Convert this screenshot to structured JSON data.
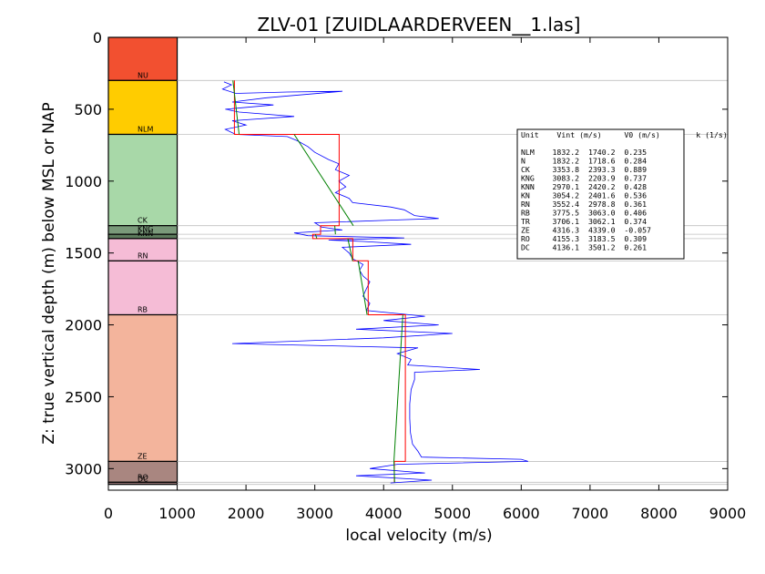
{
  "chart_data": {
    "type": "line",
    "title": "ZLV-01 [ZUIDLAARDERVEEN__1.las]",
    "xlabel": "local velocity (m/s)",
    "ylabel": "Z: true vertical depth (m) below MSL or NAP",
    "xlim": [
      0,
      9000
    ],
    "ylim": [
      3150,
      0
    ],
    "y_inverted": true,
    "xticks": [
      0,
      1000,
      2000,
      3000,
      4000,
      5000,
      6000,
      7000,
      8000,
      9000
    ],
    "yticks": [
      0,
      500,
      1000,
      1500,
      2000,
      2500,
      3000
    ],
    "grid": false,
    "units": [
      {
        "name": "NU",
        "top": 0,
        "base": 300,
        "color": "#f25030"
      },
      {
        "name": "NLM",
        "top": 300,
        "base": 675,
        "color": "#ffcc00"
      },
      {
        "name": "CK",
        "top": 675,
        "base": 1310,
        "color": "#a8d8a8"
      },
      {
        "name": "KNG",
        "top": 1310,
        "base": 1370,
        "color": "#7a9a7a"
      },
      {
        "name": "KNN",
        "top": 1370,
        "base": 1400,
        "color": "#5c7a5c"
      },
      {
        "name": "RN",
        "top": 1400,
        "base": 1555,
        "color": "#f5bcd6"
      },
      {
        "name": "RB",
        "top": 1555,
        "base": 1930,
        "color": "#f5bcd6"
      },
      {
        "name": "ZE",
        "top": 1930,
        "base": 2950,
        "color": "#f3b49c"
      },
      {
        "name": "RO",
        "top": 2950,
        "base": 3095,
        "color": "#a98680"
      },
      {
        "name": "DC",
        "top": 3095,
        "base": 3110,
        "color": "#8d6e6e"
      }
    ],
    "series": [
      {
        "role": "log",
        "color": "#0000ff",
        "points": [
          [
            1680,
            310
          ],
          [
            1790,
            330
          ],
          [
            1660,
            360
          ],
          [
            1850,
            390
          ],
          [
            2600,
            380
          ],
          [
            3400,
            375
          ],
          [
            2300,
            420
          ],
          [
            1800,
            450
          ],
          [
            2400,
            470
          ],
          [
            1700,
            500
          ],
          [
            1900,
            520
          ],
          [
            2700,
            550
          ],
          [
            1800,
            580
          ],
          [
            2000,
            610
          ],
          [
            1700,
            640
          ],
          [
            1850,
            675
          ],
          [
            2600,
            690
          ],
          [
            2750,
            720
          ],
          [
            2900,
            760
          ],
          [
            3000,
            800
          ],
          [
            3200,
            850
          ],
          [
            3350,
            880
          ],
          [
            3300,
            920
          ],
          [
            3500,
            960
          ],
          [
            3350,
            1000
          ],
          [
            3450,
            1040
          ],
          [
            3300,
            1080
          ],
          [
            3500,
            1120
          ],
          [
            3550,
            1150
          ],
          [
            4100,
            1180
          ],
          [
            4300,
            1200
          ],
          [
            4450,
            1240
          ],
          [
            4800,
            1260
          ],
          [
            4200,
            1270
          ],
          [
            3000,
            1290
          ],
          [
            3100,
            1320
          ],
          [
            3400,
            1340
          ],
          [
            2700,
            1360
          ],
          [
            2900,
            1380
          ],
          [
            4300,
            1395
          ],
          [
            3200,
            1410
          ],
          [
            3700,
            1420
          ],
          [
            4400,
            1440
          ],
          [
            3400,
            1460
          ],
          [
            3500,
            1500
          ],
          [
            3550,
            1540
          ],
          [
            3700,
            1580
          ],
          [
            3650,
            1620
          ],
          [
            3700,
            1660
          ],
          [
            3800,
            1700
          ],
          [
            3750,
            1750
          ],
          [
            3700,
            1800
          ],
          [
            3800,
            1850
          ],
          [
            3750,
            1900
          ],
          [
            4600,
            1940
          ],
          [
            4000,
            1970
          ],
          [
            4800,
            2000
          ],
          [
            3600,
            2030
          ],
          [
            5000,
            2060
          ],
          [
            4000,
            2090
          ],
          [
            1800,
            2130
          ],
          [
            4500,
            2160
          ],
          [
            4200,
            2200
          ],
          [
            4400,
            2240
          ],
          [
            4350,
            2280
          ],
          [
            5400,
            2310
          ],
          [
            4450,
            2330
          ],
          [
            4450,
            2380
          ],
          [
            4400,
            2450
          ],
          [
            4380,
            2550
          ],
          [
            4380,
            2650
          ],
          [
            4390,
            2750
          ],
          [
            4420,
            2830
          ],
          [
            4500,
            2880
          ],
          [
            4550,
            2920
          ],
          [
            6000,
            2935
          ],
          [
            6100,
            2950
          ],
          [
            4200,
            2970
          ],
          [
            3800,
            3000
          ],
          [
            4600,
            3030
          ],
          [
            3600,
            3050
          ],
          [
            4700,
            3080
          ],
          [
            4100,
            3100
          ]
        ]
      },
      {
        "role": "interval",
        "color": "#ff0000",
        "points": [
          [
            1832.2,
            300
          ],
          [
            1832.2,
            675
          ],
          [
            3353.8,
            675
          ],
          [
            3353.8,
            1310
          ],
          [
            3083.2,
            1310
          ],
          [
            3083.2,
            1370
          ],
          [
            2970.1,
            1370
          ],
          [
            2970.1,
            1400
          ],
          [
            3552.4,
            1400
          ],
          [
            3552.4,
            1555
          ],
          [
            3775.5,
            1555
          ],
          [
            3775.5,
            1930
          ],
          [
            4316.3,
            1930
          ],
          [
            4316.3,
            2950
          ],
          [
            4155.3,
            2950
          ],
          [
            4155.3,
            3095
          ]
        ]
      },
      {
        "role": "linear-fit",
        "color": "#008000",
        "segments": [
          [
            [
              1810,
              300
            ],
            [
              1900,
              675
            ]
          ],
          [
            [
              2700,
              675
            ],
            [
              3560,
              1310
            ]
          ],
          [
            [
              3290,
              1310
            ],
            [
              3300,
              1370
            ]
          ],
          [
            [
              3010,
              1370
            ],
            [
              3030,
              1400
            ]
          ],
          [
            [
              3480,
              1400
            ],
            [
              3550,
              1555
            ]
          ],
          [
            [
              3630,
              1555
            ],
            [
              3760,
              1930
            ]
          ],
          [
            [
              4280,
              1930
            ],
            [
              4150,
              2950
            ]
          ],
          [
            [
              4150,
              2950
            ],
            [
              4160,
              3095
            ]
          ]
        ]
      }
    ],
    "table": {
      "header": "Unit    Vint (m/s)     V0 (m/s)        k (1/s)",
      "rows": [
        "NLM    1832.2  1740.2  0.235",
        "N      1832.2  1718.6  0.284",
        "CK     3353.8  2393.3  0.889",
        "KNG    3083.2  2203.9  0.737",
        "KNN    2970.1  2420.2  0.428",
        "KN     3054.2  2401.6  0.536",
        "RN     3552.4  2978.8  0.361",
        "RB     3775.5  3063.0  0.406",
        "TR     3706.1  3062.1  0.374",
        "ZE     4316.3  4339.0  -0.057",
        "RO     4155.3  3183.5  0.309",
        "DC     4136.1  3501.2  0.261"
      ]
    }
  }
}
